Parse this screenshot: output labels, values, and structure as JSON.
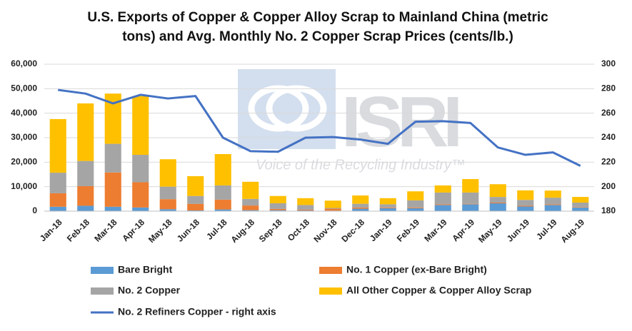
{
  "chart_data": {
    "type": "bar",
    "stacked": true,
    "title": [
      "U.S. Exports of Copper & Copper Alloy Scrap to Mainland China (metric",
      "tons) and Avg. Monthly No. 2 Copper Scrap Prices (cents/lb.)"
    ],
    "watermark": {
      "logo_text": "ISRI",
      "tagline": "Voice of the Recycling Industry™"
    },
    "categories": [
      "Jan-18",
      "Feb-18",
      "Mar-18",
      "Apr-18",
      "May-18",
      "Jun-18",
      "Jul-18",
      "Aug-18",
      "Sep-18",
      "Oct-18",
      "Nov-18",
      "Dec-18",
      "Jan-19",
      "Feb-19",
      "Mar-19",
      "Apr-19",
      "May-19",
      "Jun-19",
      "Jul-19",
      "Aug-19"
    ],
    "series": [
      {
        "name": "Bare Bright",
        "color": "#5b9bd5",
        "values": [
          1800,
          2200,
          1800,
          1500,
          800,
          300,
          700,
          400,
          400,
          300,
          200,
          1000,
          1200,
          1200,
          2500,
          2800,
          3200,
          1900,
          2500,
          1500
        ]
      },
      {
        "name": "No. 1 Copper (ex-Bare Bright)",
        "color": "#ed7d31",
        "values": [
          5500,
          8000,
          14000,
          10300,
          4100,
          2700,
          4000,
          1900,
          500,
          300,
          800,
          500,
          300,
          300,
          300,
          200,
          300,
          300,
          300,
          200
        ]
      },
      {
        "name": "No. 2 Copper",
        "color": "#a5a5a5",
        "values": [
          8400,
          10300,
          11700,
          11200,
          5100,
          3200,
          5800,
          2700,
          2300,
          1900,
          300,
          1500,
          1300,
          2900,
          4800,
          4600,
          2300,
          2400,
          2700,
          1800
        ]
      },
      {
        "name": "All Other Copper & Copper Alloy Scrap",
        "color": "#ffc000",
        "values": [
          21900,
          23500,
          20500,
          24000,
          11200,
          8100,
          12800,
          7000,
          3000,
          2800,
          3000,
          3400,
          2500,
          3700,
          2900,
          5500,
          5200,
          3900,
          2900,
          2300
        ]
      },
      {
        "name": "No. 2 Refiners Copper - right axis",
        "color": "#4472c4",
        "type": "line",
        "axis": "y2",
        "values": [
          279,
          276,
          268,
          275,
          272,
          274,
          240,
          229,
          228.5,
          240,
          240.5,
          238.5,
          235,
          253,
          253.5,
          252,
          232,
          226,
          228,
          217
        ]
      }
    ],
    "ylim": [
      0,
      60000
    ],
    "yticks": [
      0,
      {
        "value": 10000,
        "label": "10,000"
      },
      {
        "value": 20000,
        "label": "20,000"
      },
      {
        "value": 30000,
        "label": "30,000"
      },
      {
        "value": 40000,
        "label": "40,000"
      },
      {
        "value": 50000,
        "label": "50,000"
      },
      {
        "value": 60000,
        "label": "60,000"
      }
    ],
    "y2lim": [
      180,
      300
    ],
    "y2ticks": [
      180,
      200,
      220,
      240,
      260,
      280,
      300
    ],
    "grid": true
  }
}
